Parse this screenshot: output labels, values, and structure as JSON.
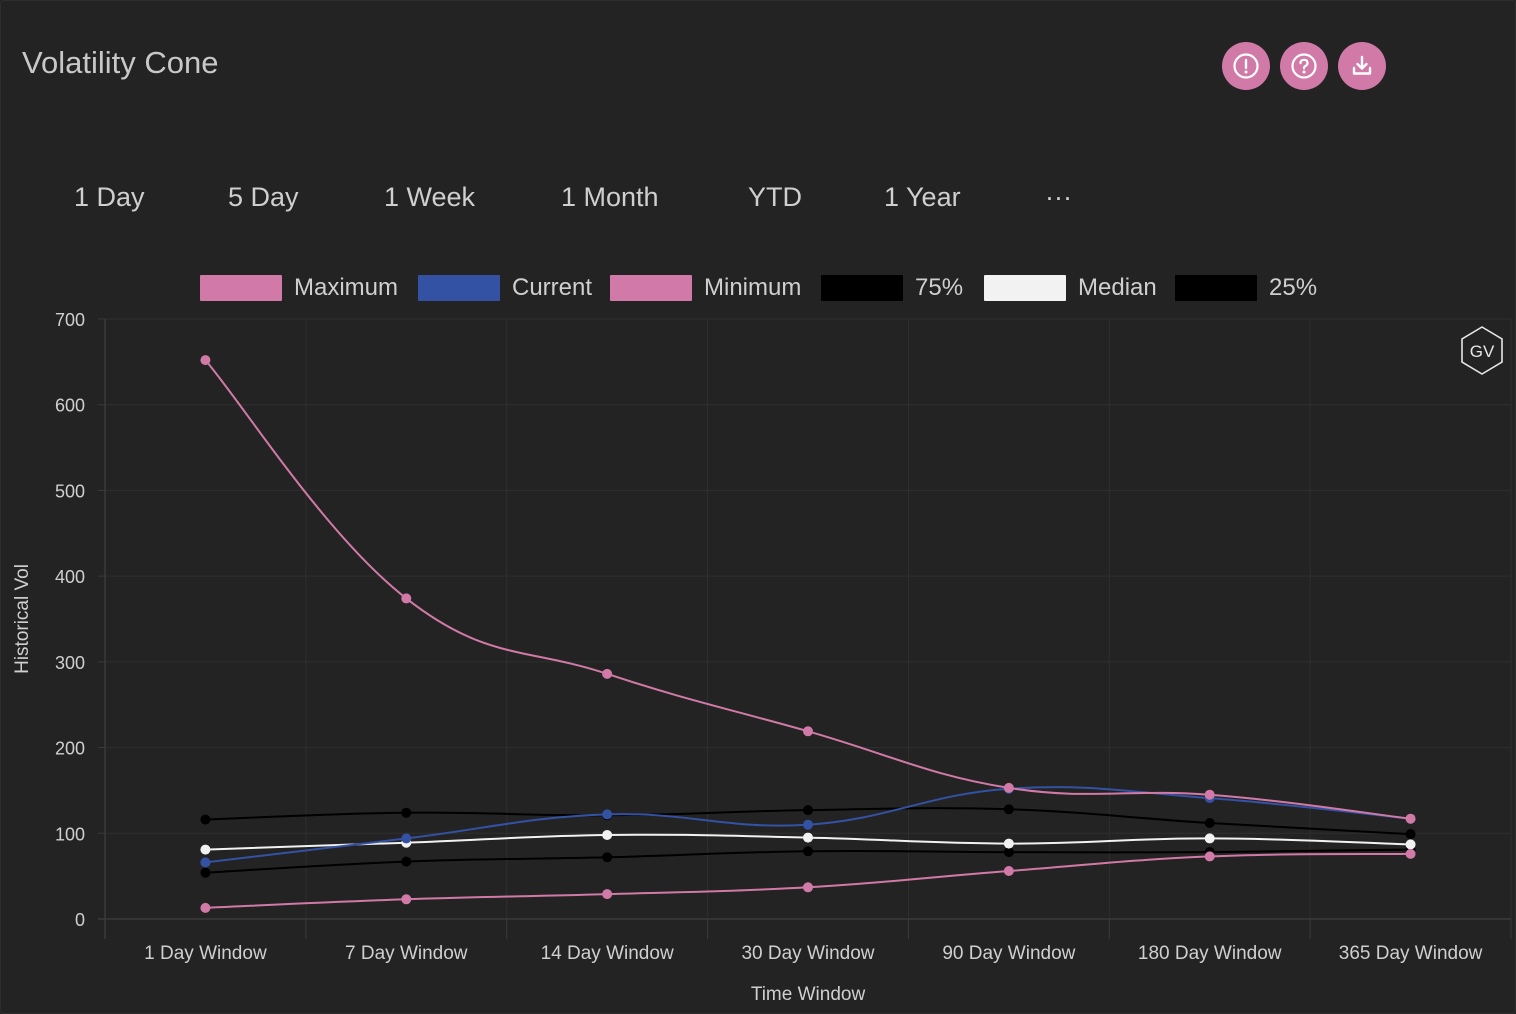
{
  "header": {
    "title": "Volatility Cone"
  },
  "actions": [
    {
      "name": "alert-button",
      "icon": "alert-circle-icon"
    },
    {
      "name": "help-button",
      "icon": "question-circle-icon"
    },
    {
      "name": "download-button",
      "icon": "download-icon"
    }
  ],
  "tabs": [
    {
      "label": "1 Day"
    },
    {
      "label": "5 Day"
    },
    {
      "label": "1 Week"
    },
    {
      "label": "1 Month"
    },
    {
      "label": "YTD"
    },
    {
      "label": "1 Year"
    },
    {
      "label": "···"
    }
  ],
  "watermark": {
    "text": "GV"
  },
  "chart_data": {
    "type": "line",
    "xlabel": "Time Window",
    "ylabel": "Historical Vol",
    "ylim": [
      0,
      700
    ],
    "yticks": [
      0,
      100,
      200,
      300,
      400,
      500,
      600,
      700
    ],
    "grid": true,
    "legend_position": "top",
    "categories": [
      "1 Day Window",
      "7 Day Window",
      "14 Day Window",
      "30 Day Window",
      "90 Day Window",
      "180 Day Window",
      "365 Day Window"
    ],
    "series": [
      {
        "name": "Maximum",
        "color": "#d17aa7",
        "values": [
          652,
          374,
          286,
          219,
          153,
          145,
          117
        ]
      },
      {
        "name": "Current",
        "color": "#3452a4",
        "values": [
          66,
          94,
          122,
          110,
          152,
          141,
          117
        ]
      },
      {
        "name": "Minimum",
        "color": "#d17aa7",
        "values": [
          13,
          23,
          29,
          37,
          56,
          73,
          76
        ]
      },
      {
        "name": "75%",
        "color": "#000000",
        "values": [
          116,
          124,
          121,
          127,
          128,
          112,
          99
        ]
      },
      {
        "name": "Median",
        "color": "#f2f2f2",
        "values": [
          81,
          89,
          98,
          95,
          88,
          94,
          87
        ]
      },
      {
        "name": "25%",
        "color": "#000000",
        "values": [
          54,
          67,
          72,
          79,
          78,
          78,
          81
        ]
      }
    ]
  }
}
